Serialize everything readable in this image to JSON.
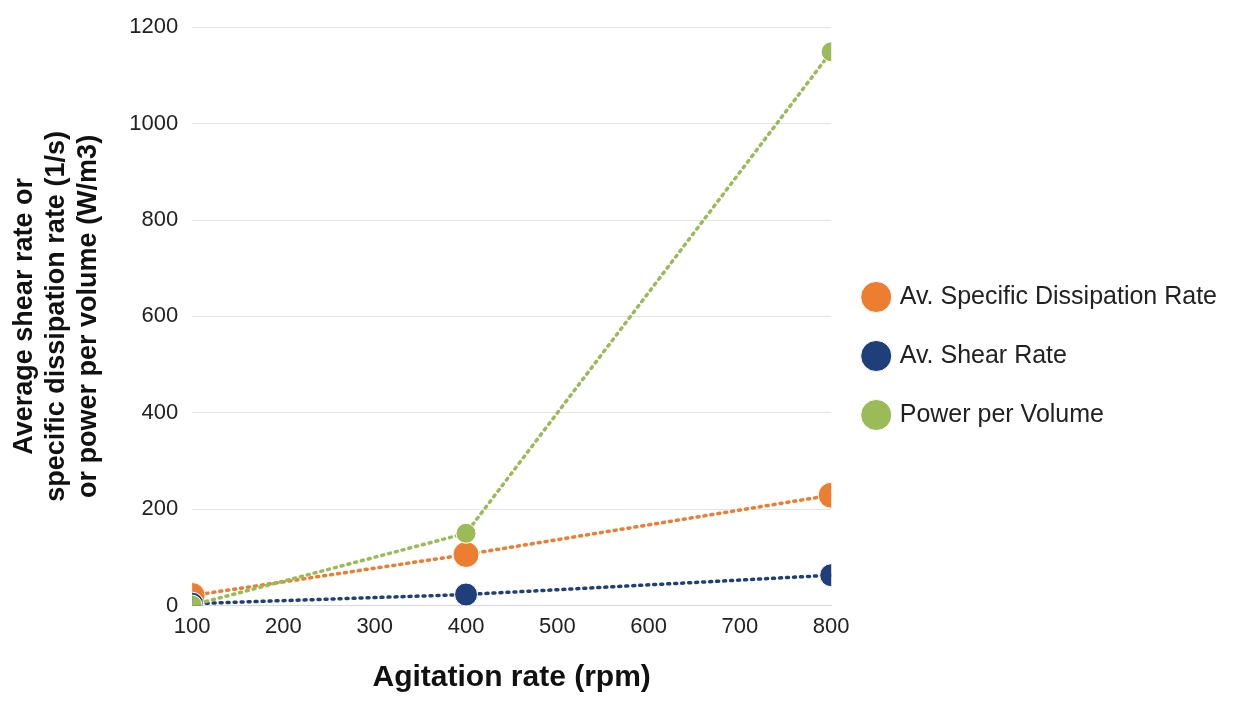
{
  "chart_data": {
    "type": "line",
    "xlabel": "Agitation rate (rpm)",
    "ylabel": "Average shear rate or\nspecific dissipation rate (1/s)\nor power per volume (W/m3)",
    "x": [
      100,
      400,
      800
    ],
    "series": [
      {
        "name": "Av. Specific Dissipation Rate",
        "color": "#ed7d31",
        "values": [
          21,
          106,
          229
        ]
      },
      {
        "name": "Av. Shear Rate",
        "color": "#1f3f7a",
        "values": [
          4,
          23,
          63
        ]
      },
      {
        "name": "Power per Volume",
        "color": "#9bbb59",
        "values": [
          1,
          150,
          1149
        ]
      }
    ],
    "xlim": [
      100,
      800
    ],
    "xticks": [
      100,
      200,
      300,
      400,
      500,
      600,
      700,
      800
    ],
    "ylim": [
      0,
      1200
    ],
    "yticks": [
      0,
      200,
      400,
      600,
      800,
      1000,
      1200
    ],
    "grid": "y",
    "legend": "right",
    "marker": "circle",
    "line_style": "dotted"
  }
}
